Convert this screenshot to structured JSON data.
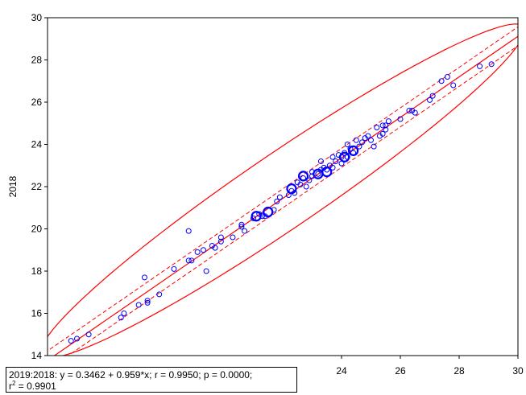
{
  "chart_data": {
    "type": "scatter",
    "title": "",
    "xlabel": "",
    "ylabel": "2018",
    "xlim": [
      14,
      30
    ],
    "ylim": [
      14,
      30
    ],
    "x_ticks": [
      "24",
      "26",
      "28",
      "30"
    ],
    "y_ticks": [
      "14",
      "16",
      "18",
      "20",
      "22",
      "24",
      "26",
      "28",
      "30"
    ],
    "grid": false,
    "regression": {
      "intercept": 0.3462,
      "slope": 0.959
    },
    "confidence_band_offset": 0.45,
    "ellipse": {
      "center": [
        22.0,
        21.8
      ],
      "orientation_deg": 43.8,
      "semi_major": 11.3,
      "semi_minor": 1.55
    },
    "colors": {
      "points": "#0000ff",
      "lines": "#ff0000"
    },
    "points": [
      [
        14.8,
        14.7
      ],
      [
        15.0,
        14.8
      ],
      [
        15.4,
        15.0
      ],
      [
        16.5,
        15.8
      ],
      [
        16.6,
        16.0
      ],
      [
        17.1,
        16.4
      ],
      [
        17.4,
        16.5
      ],
      [
        17.4,
        16.6
      ],
      [
        17.8,
        16.9
      ],
      [
        17.3,
        17.7
      ],
      [
        18.3,
        18.1
      ],
      [
        18.8,
        18.5
      ],
      [
        18.9,
        18.5
      ],
      [
        18.8,
        19.9
      ],
      [
        19.1,
        18.9
      ],
      [
        19.3,
        19.0
      ],
      [
        19.4,
        18.0
      ],
      [
        19.6,
        19.2
      ],
      [
        19.7,
        19.1
      ],
      [
        19.9,
        19.4
      ],
      [
        19.9,
        19.6
      ],
      [
        20.3,
        19.6
      ],
      [
        20.6,
        20.1
      ],
      [
        20.6,
        20.2
      ],
      [
        20.7,
        19.9
      ],
      [
        21.0,
        20.5
      ],
      [
        21.2,
        20.7
      ],
      [
        21.3,
        20.6
      ],
      [
        21.4,
        20.6
      ],
      [
        21.7,
        20.9
      ],
      [
        21.8,
        21.3
      ],
      [
        21.9,
        21.5
      ],
      [
        22.2,
        21.6
      ],
      [
        22.3,
        21.8
      ],
      [
        22.4,
        21.7
      ],
      [
        22.5,
        22.2
      ],
      [
        22.6,
        22.1
      ],
      [
        22.7,
        22.4
      ],
      [
        22.8,
        22.0
      ],
      [
        22.9,
        22.3
      ],
      [
        23.0,
        22.5
      ],
      [
        23.0,
        22.7
      ],
      [
        23.2,
        22.6
      ],
      [
        23.3,
        22.8
      ],
      [
        23.3,
        23.2
      ],
      [
        23.4,
        22.9
      ],
      [
        23.5,
        22.8
      ],
      [
        23.6,
        23.0
      ],
      [
        23.7,
        22.9
      ],
      [
        23.7,
        23.4
      ],
      [
        23.8,
        23.2
      ],
      [
        23.9,
        23.5
      ],
      [
        24.0,
        23.1
      ],
      [
        24.0,
        23.4
      ],
      [
        24.1,
        23.6
      ],
      [
        24.2,
        23.4
      ],
      [
        24.2,
        24.0
      ],
      [
        24.3,
        23.8
      ],
      [
        24.4,
        23.6
      ],
      [
        24.5,
        24.2
      ],
      [
        24.6,
        23.9
      ],
      [
        24.7,
        24.1
      ],
      [
        24.8,
        24.3
      ],
      [
        24.9,
        24.4
      ],
      [
        25.0,
        24.2
      ],
      [
        25.1,
        23.9
      ],
      [
        25.2,
        24.8
      ],
      [
        25.3,
        24.4
      ],
      [
        25.4,
        24.5
      ],
      [
        25.4,
        24.9
      ],
      [
        25.5,
        24.7
      ],
      [
        25.5,
        24.9
      ],
      [
        25.6,
        25.1
      ],
      [
        26.0,
        25.2
      ],
      [
        26.3,
        25.6
      ],
      [
        26.4,
        25.6
      ],
      [
        26.5,
        25.5
      ],
      [
        27.0,
        26.1
      ],
      [
        27.1,
        26.3
      ],
      [
        27.4,
        27.0
      ],
      [
        27.6,
        27.2
      ],
      [
        27.8,
        26.8
      ],
      [
        28.7,
        27.7
      ],
      [
        29.1,
        27.8
      ]
    ],
    "large_points": [
      [
        21.1,
        20.6
      ],
      [
        21.5,
        20.8
      ],
      [
        22.3,
        21.9
      ],
      [
        22.7,
        22.5
      ],
      [
        23.2,
        22.6
      ],
      [
        23.5,
        22.7
      ],
      [
        24.1,
        23.4
      ],
      [
        24.4,
        23.7
      ]
    ]
  },
  "stats": {
    "line1": "2019:2018:   y = 0.3462 + 0.959*x;   r = 0.9950; p = 0.0000;",
    "r2_prefix": "r",
    "r2_sup": "2",
    "r2_value": " = 0.9901"
  }
}
